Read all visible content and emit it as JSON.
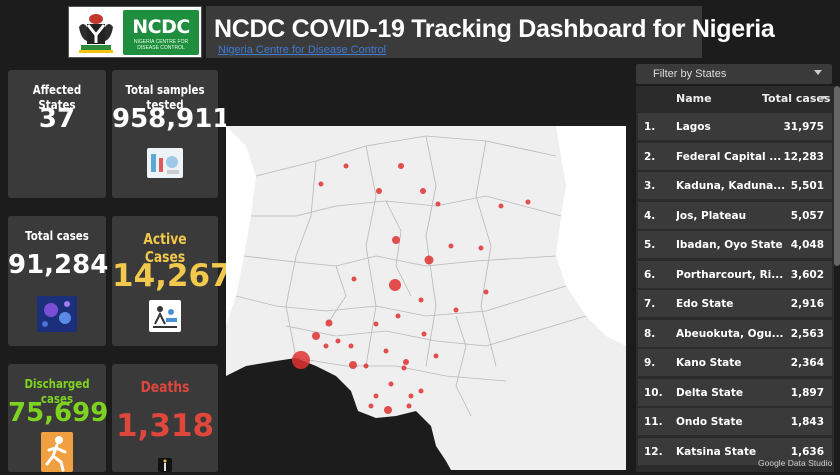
{
  "header": {
    "title": "NCDC COVID-19 Tracking Dashboard for Nigeria",
    "link": "Nigeria Centre for Disease Control",
    "logo_text": "NCDC",
    "logo_subtext": "NIGERIA CENTRE FOR DISEASE CONTROL"
  },
  "cards": {
    "affected_states": {
      "label": "Affected States",
      "value": "37"
    },
    "samples_tested": {
      "label": "Total samples tested",
      "value": "958,911"
    },
    "total_cases": {
      "label": "Total cases",
      "value": "91,284"
    },
    "active_cases": {
      "label": "Active Cases",
      "value": "14,267",
      "color": "#f2c94c"
    },
    "discharged": {
      "label": "Discharged cases",
      "value": "75,699",
      "color": "#7ed321"
    },
    "deaths": {
      "label": "Deaths",
      "value": "1,318",
      "color": "#e0473c"
    }
  },
  "filter": {
    "label": "Filter by States"
  },
  "table": {
    "col_name": "Name",
    "col_total": "Total cases",
    "rows": [
      {
        "n": "1.",
        "name": "Lagos",
        "cases": "31,975"
      },
      {
        "n": "2.",
        "name": "Federal Capital ...",
        "cases": "12,283"
      },
      {
        "n": "3.",
        "name": "Kaduna, Kaduna...",
        "cases": "5,501"
      },
      {
        "n": "4.",
        "name": "Jos, Plateau",
        "cases": "5,057"
      },
      {
        "n": "5.",
        "name": "Ibadan, Oyo State",
        "cases": "4,048"
      },
      {
        "n": "6.",
        "name": "Portharcourt, Ri...",
        "cases": "3,602"
      },
      {
        "n": "7.",
        "name": "Edo State",
        "cases": "2,916"
      },
      {
        "n": "8.",
        "name": "Abeuokuta, Ogu...",
        "cases": "2,563"
      },
      {
        "n": "9.",
        "name": "Kano State",
        "cases": "2,364"
      },
      {
        "n": "10.",
        "name": "Delta State",
        "cases": "1,897"
      },
      {
        "n": "11.",
        "name": "Ondo State",
        "cases": "1,843"
      },
      {
        "n": "12.",
        "name": "Katsina State",
        "cases": "1,636"
      }
    ]
  },
  "footer": {
    "credit": "Google Data Studio"
  }
}
